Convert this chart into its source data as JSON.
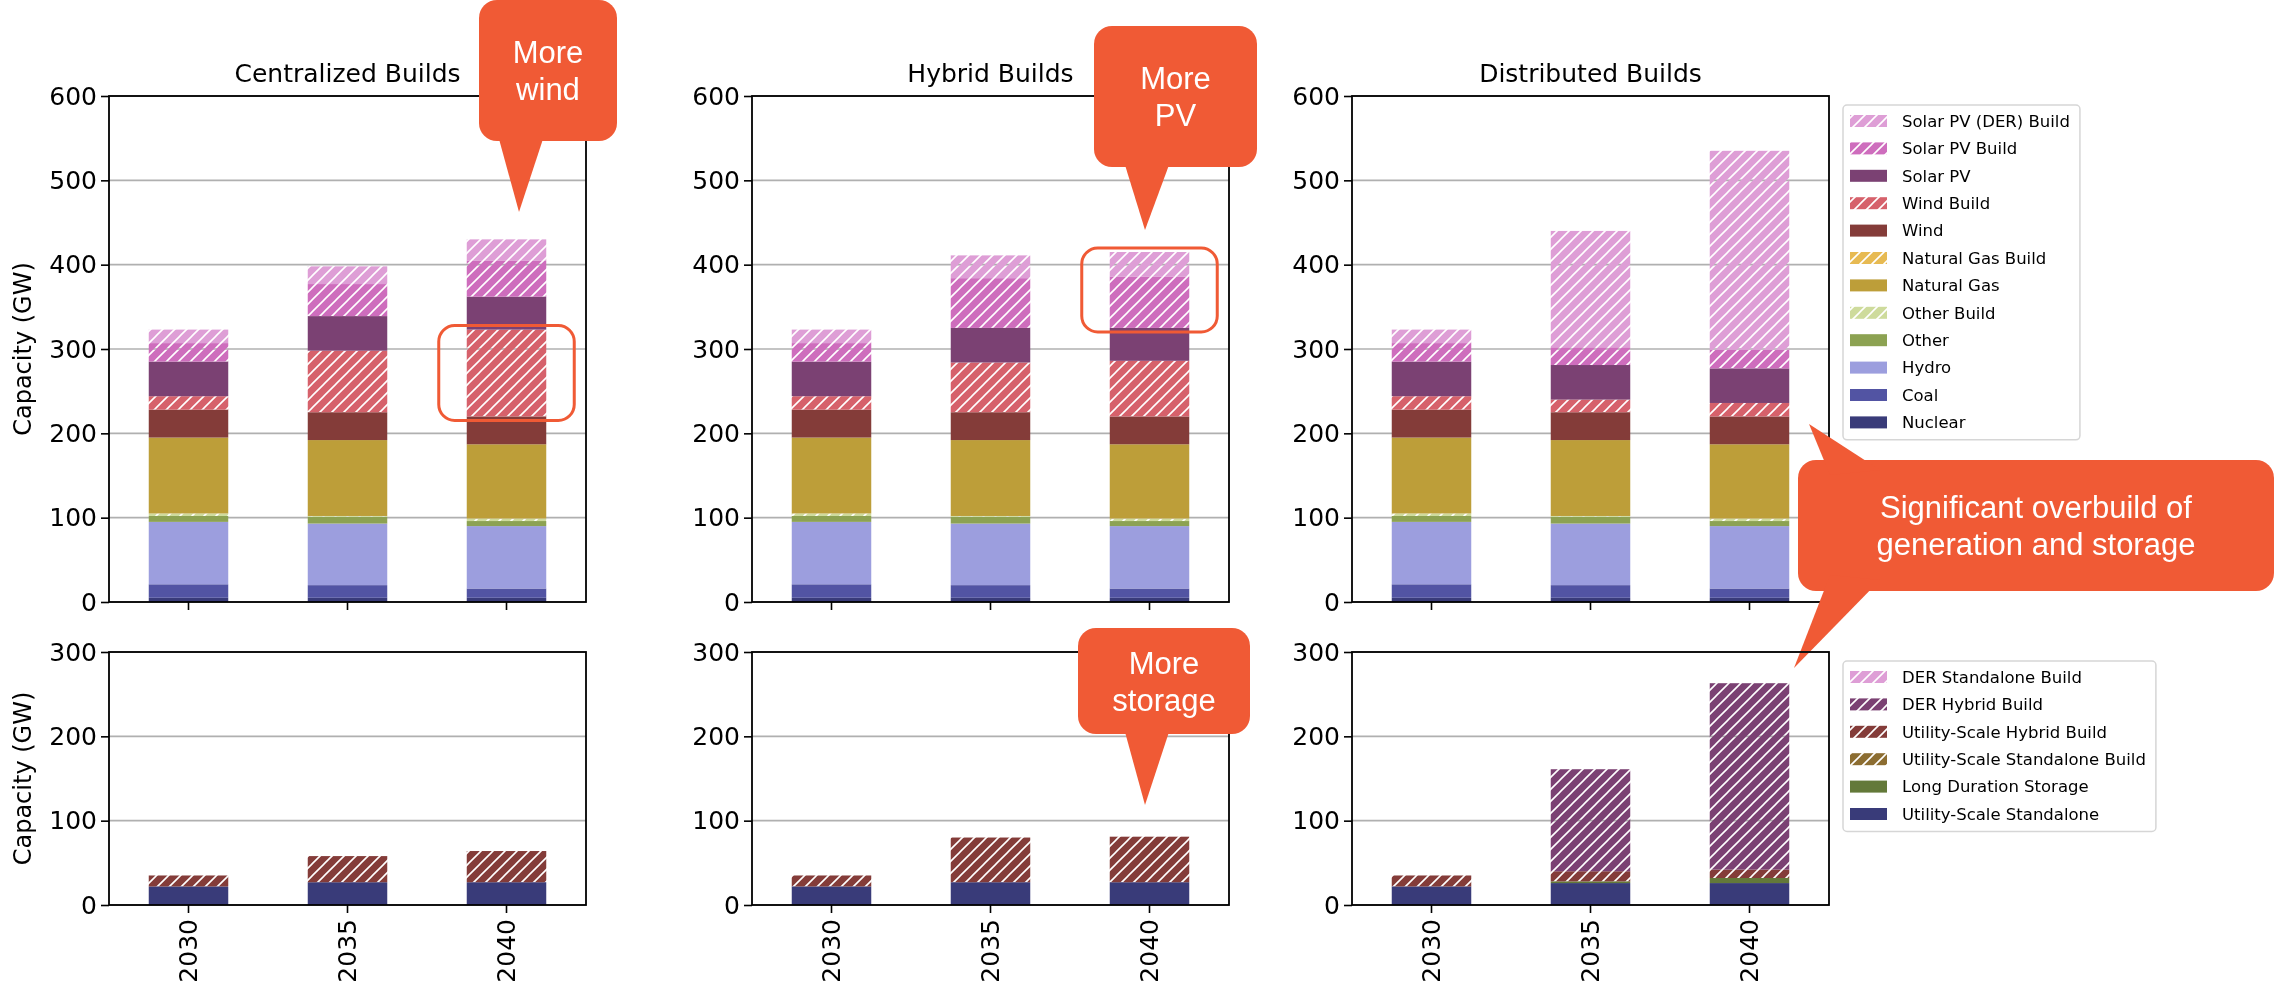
{
  "chart_data": [
    {
      "type": "bar",
      "stacked": true,
      "title": "Centralized Builds",
      "ylabel": "Capacity (GW)",
      "categories": [
        "2030",
        "2035",
        "2040"
      ],
      "ylim": [
        0,
        600
      ],
      "yticks": [
        0,
        100,
        200,
        300,
        400,
        500,
        600
      ],
      "grid": "y",
      "tick_labels": "y",
      "annotations": [
        "More wind"
      ],
      "series": [
        {
          "color": "#393b79",
          "values": [
            5,
            5,
            5
          ]
        },
        {
          "color": "#5254a3",
          "values": [
            16,
            15,
            11
          ]
        },
        {
          "color": "#9c9ede",
          "values": [
            74,
            73,
            74
          ]
        },
        {
          "color": "#8ca252",
          "values": [
            7,
            8,
            6
          ]
        },
        {
          "color": "#cedb9c",
          "values": [
            3,
            1,
            3
          ]
        },
        {
          "color": "#bd9e39",
          "values": [
            90,
            90,
            88
          ]
        },
        {
          "color": "#e7ba52",
          "values": [
            0,
            0,
            0
          ]
        },
        {
          "color": "#843c39",
          "values": [
            33,
            33,
            33
          ]
        },
        {
          "color": "#d6616b",
          "values": [
            16,
            73,
            103
          ]
        },
        {
          "color": "#7b4173",
          "values": [
            41,
            41,
            39
          ]
        },
        {
          "color": "#ce6dbd",
          "values": [
            22,
            38,
            43
          ]
        },
        {
          "color": "#de9ed6",
          "values": [
            16,
            21,
            25
          ]
        }
      ]
    },
    {
      "type": "bar",
      "stacked": true,
      "title": "Hybrid Builds",
      "categories": [
        "2030",
        "2035",
        "2040"
      ],
      "ylim": [
        0,
        600
      ],
      "yticks": [
        0,
        100,
        200,
        300,
        400,
        500,
        600
      ],
      "grid": "y",
      "tick_labels": "y",
      "annotations": [
        "More PV"
      ],
      "series": [
        {
          "color": "#393b79",
          "values": [
            5,
            5,
            5
          ]
        },
        {
          "color": "#5254a3",
          "values": [
            16,
            15,
            11
          ]
        },
        {
          "color": "#9c9ede",
          "values": [
            74,
            73,
            74
          ]
        },
        {
          "color": "#8ca252",
          "values": [
            7,
            8,
            6
          ]
        },
        {
          "color": "#cedb9c",
          "values": [
            3,
            1,
            3
          ]
        },
        {
          "color": "#bd9e39",
          "values": [
            90,
            90,
            88
          ]
        },
        {
          "color": "#e7ba52",
          "values": [
            0,
            0,
            0
          ]
        },
        {
          "color": "#843c39",
          "values": [
            33,
            33,
            33
          ]
        },
        {
          "color": "#d6616b",
          "values": [
            16,
            59,
            66
          ]
        },
        {
          "color": "#7b4173",
          "values": [
            41,
            41,
            39
          ]
        },
        {
          "color": "#ce6dbd",
          "values": [
            22,
            59,
            61
          ]
        },
        {
          "color": "#de9ed6",
          "values": [
            16,
            27,
            29
          ]
        }
      ]
    },
    {
      "type": "bar",
      "stacked": true,
      "title": "Distributed Builds",
      "categories": [
        "2030",
        "2035",
        "2040"
      ],
      "ylim": [
        0,
        600
      ],
      "yticks": [
        0,
        100,
        200,
        300,
        400,
        500,
        600
      ],
      "grid": "y",
      "tick_labels": "y",
      "legend": "right",
      "annotations": [
        "Significant overbuild of generation and storage"
      ],
      "series": [
        {
          "name": "Nuclear",
          "color": "#393b79",
          "values": [
            5,
            5,
            5
          ]
        },
        {
          "name": "Coal",
          "color": "#5254a3",
          "values": [
            16,
            15,
            11
          ]
        },
        {
          "name": "Hydro",
          "color": "#9c9ede",
          "values": [
            74,
            73,
            74
          ]
        },
        {
          "name": "Other",
          "color": "#8ca252",
          "values": [
            7,
            8,
            6
          ]
        },
        {
          "name": "Other Build",
          "color": "#cedb9c",
          "values": [
            3,
            1,
            3
          ]
        },
        {
          "name": "Natural Gas",
          "color": "#bd9e39",
          "values": [
            90,
            90,
            88
          ]
        },
        {
          "name": "Natural Gas Build",
          "color": "#e7ba52",
          "values": [
            0,
            0,
            0
          ]
        },
        {
          "name": "Wind",
          "color": "#843c39",
          "values": [
            33,
            33,
            33
          ]
        },
        {
          "name": "Wind Build",
          "color": "#d6616b",
          "values": [
            16,
            15,
            16
          ]
        },
        {
          "name": "Solar PV",
          "color": "#7b4173",
          "values": [
            41,
            41,
            41
          ]
        },
        {
          "name": "Solar PV Build",
          "color": "#ce6dbd",
          "values": [
            22,
            21,
            22
          ]
        },
        {
          "name": "Solar PV (DER) Build",
          "color": "#de9ed6",
          "values": [
            16,
            138,
            236
          ]
        }
      ]
    },
    {
      "type": "bar",
      "stacked": true,
      "ylabel": "Capacity (GW)",
      "categories": [
        "2030",
        "2035",
        "2040"
      ],
      "ylim": [
        0,
        300
      ],
      "yticks": [
        0,
        100,
        200,
        300
      ],
      "grid": "y",
      "series": [
        {
          "color": "#393b79",
          "values": [
            22,
            27,
            27
          ]
        },
        {
          "color": "#637939",
          "values": [
            0,
            0,
            0
          ]
        },
        {
          "color": "#8c6d31",
          "values": [
            0,
            0,
            0
          ]
        },
        {
          "color": "#843c39",
          "values": [
            13,
            31,
            37
          ]
        },
        {
          "color": "#7b4173",
          "values": [
            0,
            0,
            0
          ]
        },
        {
          "color": "#de9ed6",
          "values": [
            0,
            0,
            0
          ]
        }
      ]
    },
    {
      "type": "bar",
      "stacked": true,
      "categories": [
        "2030",
        "2035",
        "2040"
      ],
      "ylim": [
        0,
        300
      ],
      "yticks": [
        0,
        100,
        200,
        300
      ],
      "grid": "y",
      "annotations": [
        "More storage"
      ],
      "series": [
        {
          "color": "#393b79",
          "values": [
            22,
            27,
            27
          ]
        },
        {
          "color": "#637939",
          "values": [
            0,
            0,
            0
          ]
        },
        {
          "color": "#8c6d31",
          "values": [
            0,
            0,
            0
          ]
        },
        {
          "color": "#843c39",
          "values": [
            13,
            53,
            54
          ]
        },
        {
          "color": "#7b4173",
          "values": [
            0,
            0,
            0
          ]
        },
        {
          "color": "#de9ed6",
          "values": [
            0,
            0,
            0
          ]
        }
      ]
    },
    {
      "type": "bar",
      "stacked": true,
      "categories": [
        "2030",
        "2035",
        "2040"
      ],
      "ylim": [
        0,
        300
      ],
      "yticks": [
        0,
        100,
        200,
        300
      ],
      "grid": "y",
      "legend": "right",
      "series": [
        {
          "name": "Utility-Scale Standalone",
          "color": "#393b79",
          "values": [
            22,
            26,
            26
          ]
        },
        {
          "name": "Long Duration Storage",
          "color": "#637939",
          "values": [
            0,
            2,
            6
          ]
        },
        {
          "name": "Utility-Scale Standalone Build",
          "color": "#8c6d31",
          "values": [
            0,
            0,
            0
          ]
        },
        {
          "name": "Utility-Scale Hybrid Build",
          "color": "#843c39",
          "values": [
            13,
            12,
            10
          ]
        },
        {
          "name": "DER Hybrid Build",
          "color": "#7b4173",
          "values": [
            0,
            121,
            221
          ]
        },
        {
          "name": "DER Standalone Build",
          "color": "#de9ed6",
          "values": [
            0,
            0,
            0
          ]
        }
      ]
    }
  ]
}
